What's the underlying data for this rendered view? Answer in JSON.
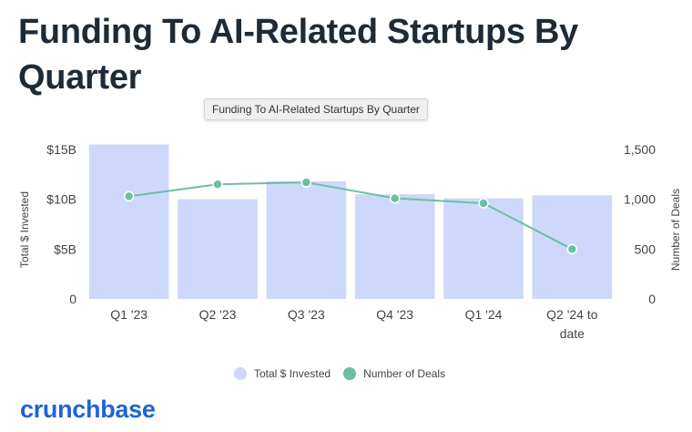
{
  "header": {
    "title": "Funding To AI-Related Startups By Quarter"
  },
  "tooltip": {
    "text": "Funding To AI-Related Startups By Quarter"
  },
  "chart_data": {
    "type": "bar",
    "title": "Funding To AI-Related Startups By Quarter",
    "categories": [
      "Q1 '23",
      "Q2 '23",
      "Q3 '23",
      "Q4 '23",
      "Q1 '24",
      "Q2 '24 to date"
    ],
    "category_lines": [
      [
        "Q1 '23"
      ],
      [
        "Q2 '23"
      ],
      [
        "Q3 '23"
      ],
      [
        "Q4 '23"
      ],
      [
        "Q1 '24"
      ],
      [
        "Q2 '24 to",
        "date"
      ]
    ],
    "series": [
      {
        "name": "Total $ Invested",
        "type": "bar",
        "axis": "left",
        "unit": "B USD",
        "color": "#cdd8fa",
        "values": [
          15.5,
          10.0,
          11.8,
          10.5,
          10.1,
          10.4
        ]
      },
      {
        "name": "Number of Deals",
        "type": "line",
        "axis": "right",
        "color": "#6cbfa3",
        "values": [
          1030,
          1150,
          1170,
          1010,
          960,
          500
        ]
      }
    ],
    "y_left": {
      "label": "Total $ Invested",
      "range": [
        0,
        15
      ],
      "ticks": [
        "$15B",
        "$10B",
        "$5B",
        "0"
      ],
      "tick_values": [
        15,
        10,
        5,
        0
      ]
    },
    "y_right": {
      "label": "Number of Deals",
      "range": [
        0,
        1500
      ],
      "ticks": [
        "1,500",
        "1,000",
        "500",
        "0"
      ],
      "tick_values": [
        1500,
        1000,
        500,
        0
      ]
    },
    "legend": [
      "Total $ Invested",
      "Number of Deals"
    ],
    "legend_position": "bottom"
  },
  "brand": {
    "logo_text": "crunchbase",
    "color": "#1e63d6"
  }
}
